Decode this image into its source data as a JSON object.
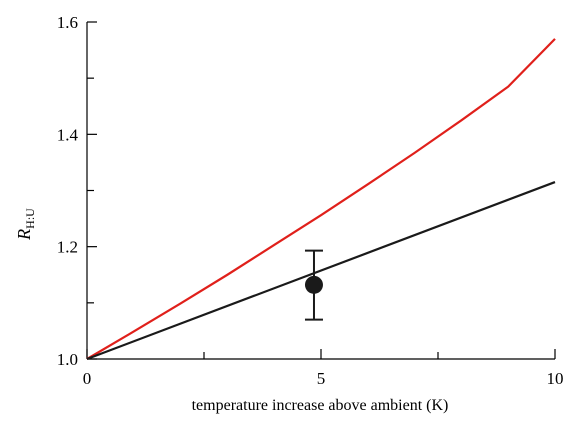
{
  "chart_data": {
    "type": "line",
    "xlabel": "temperature increase above ambient (K)",
    "ylabel": {
      "main": "R",
      "subscript": "H:U"
    },
    "xlim": [
      0,
      10
    ],
    "ylim": [
      1.0,
      1.6
    ],
    "x_ticks": [
      0,
      5,
      10
    ],
    "x_tick_labels": [
      "0",
      "5",
      "10"
    ],
    "x_minor_ticks": [
      2.5,
      7.5
    ],
    "y_ticks": [
      1.0,
      1.2,
      1.4,
      1.6
    ],
    "y_tick_labels": [
      "1.0",
      "1.2",
      "1.4",
      "1.6"
    ],
    "y_minor_ticks": [
      1.1,
      1.3,
      1.5
    ],
    "grid": false,
    "legend": "none",
    "series": [
      {
        "color": "#e0201b",
        "x": [
          0,
          1,
          2,
          3,
          4,
          5,
          6,
          7,
          8,
          9,
          10
        ],
        "y": [
          1.0,
          1.049,
          1.099,
          1.15,
          1.203,
          1.256,
          1.311,
          1.367,
          1.425,
          1.485,
          1.57
        ]
      },
      {
        "color": "#1a1a1a",
        "x": [
          0,
          10
        ],
        "y": [
          1.0,
          1.315
        ]
      }
    ],
    "points": [
      {
        "x": 4.85,
        "y": 1.132,
        "yerr_low": 1.07,
        "yerr_high": 1.193,
        "color": "#1a1a1a"
      }
    ]
  }
}
